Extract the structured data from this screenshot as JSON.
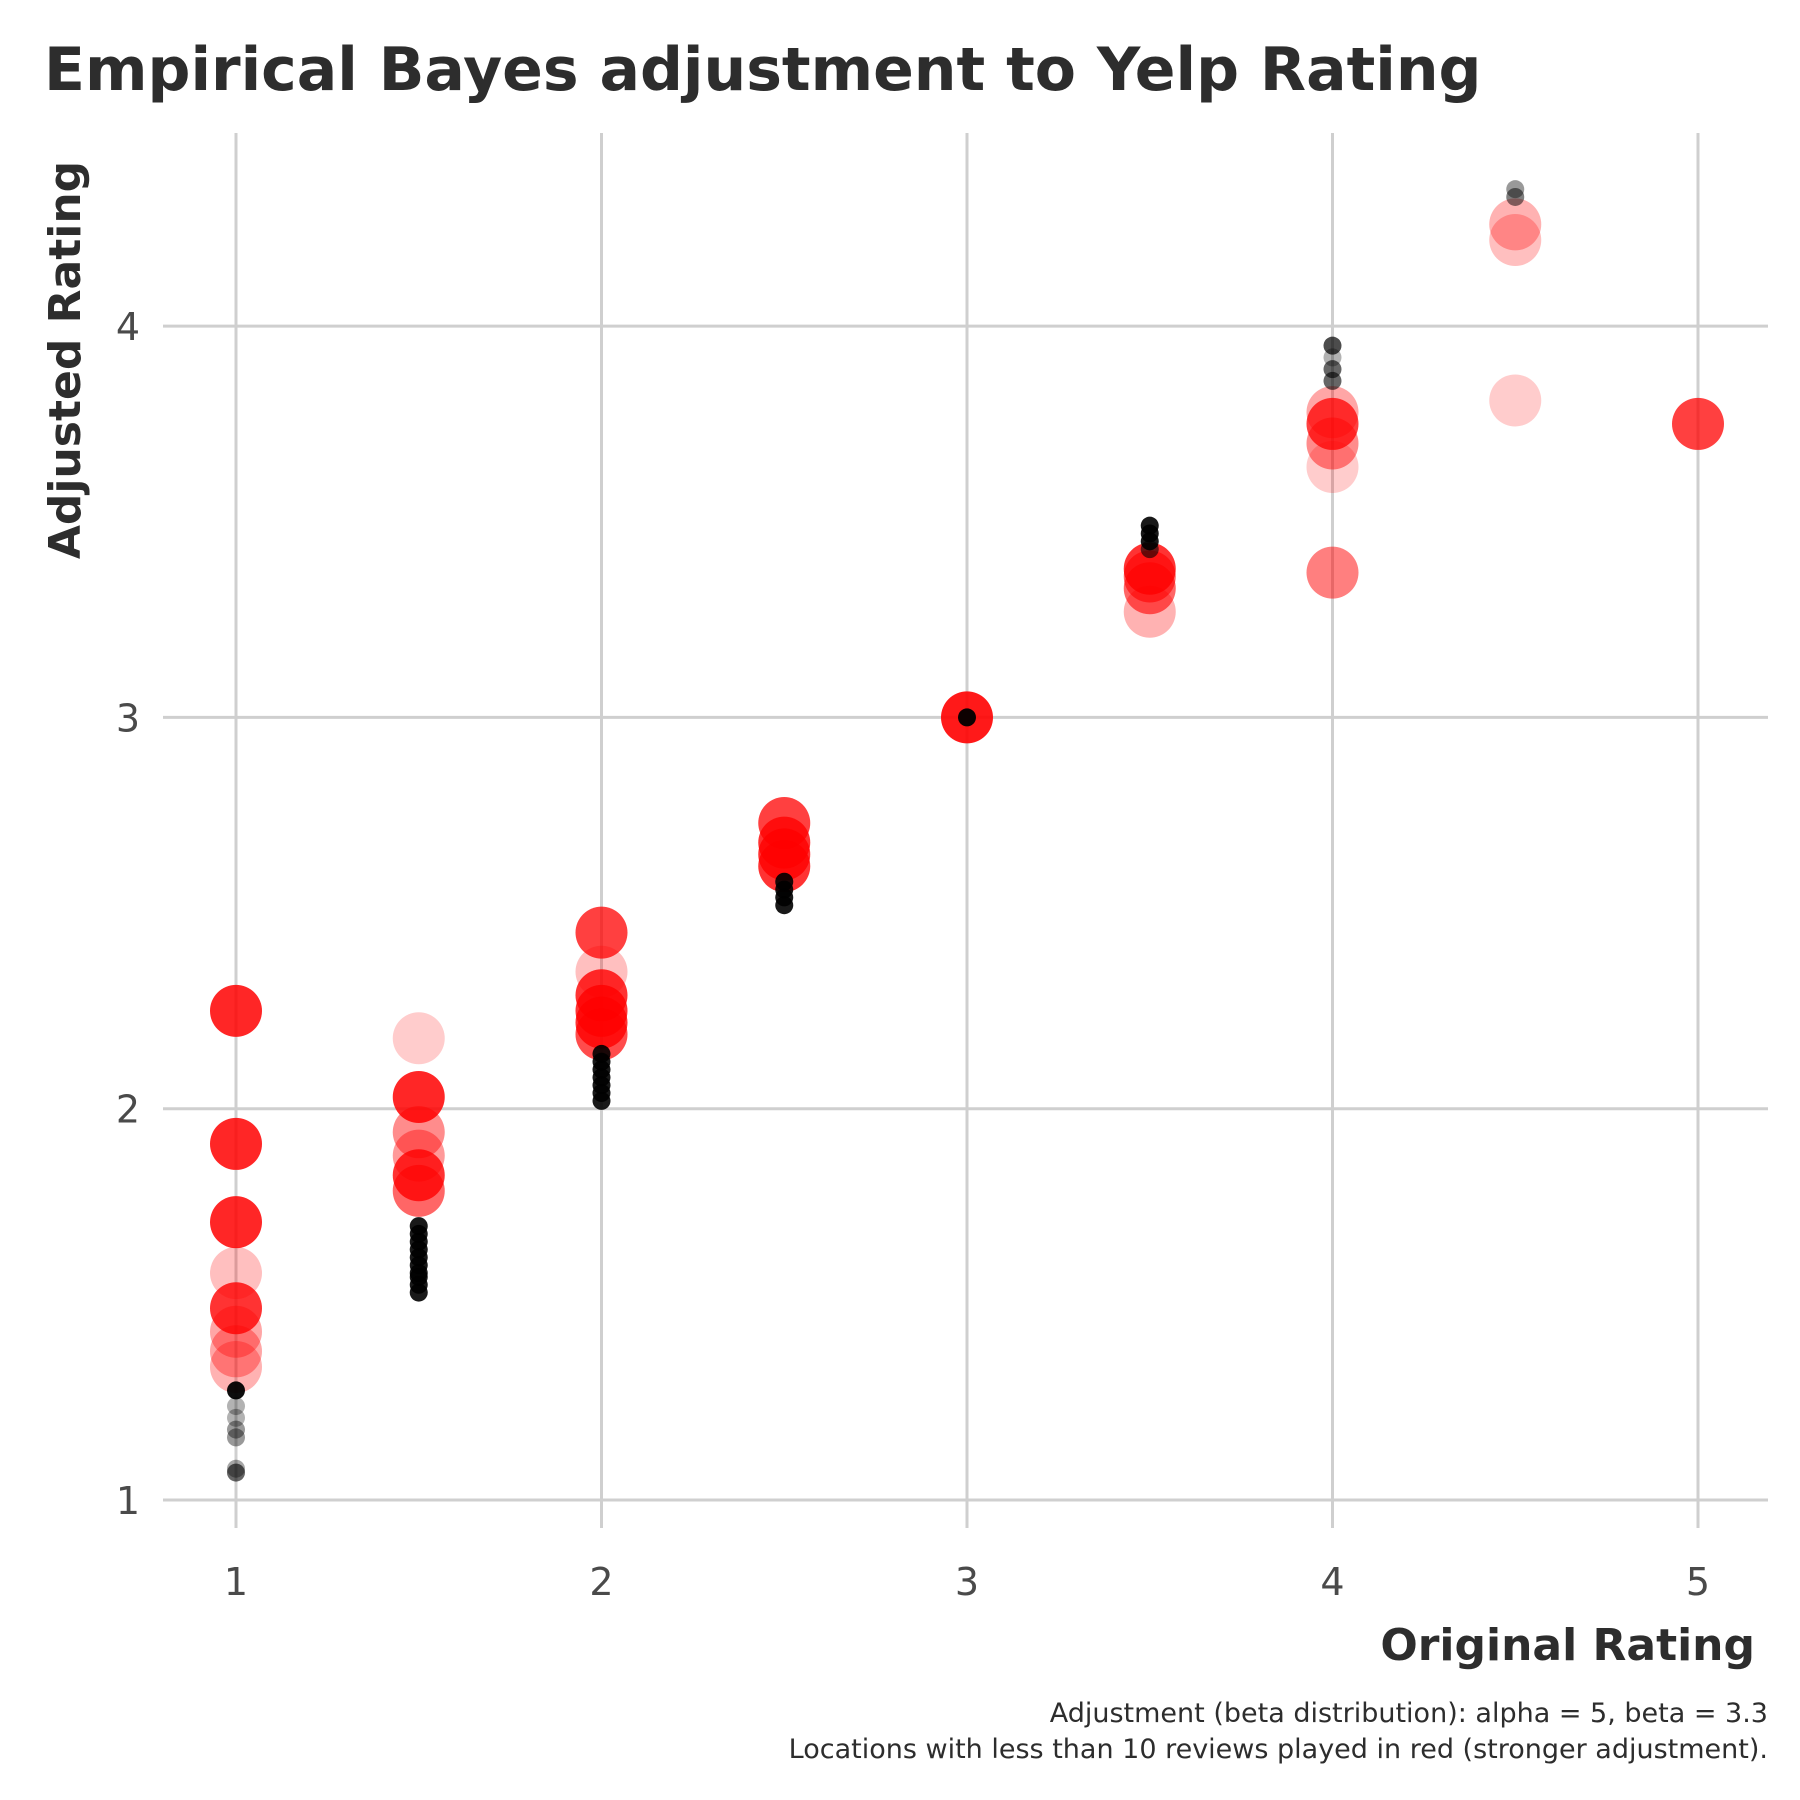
{
  "chart_data": {
    "type": "scatter",
    "title": "Empirical Bayes adjustment to Yelp Rating",
    "xlabel": "Original Rating",
    "ylabel": "Adjusted Rating",
    "caption_line1": "Adjustment (beta distribution): alpha = 5, beta = 3.3",
    "caption_line2": "Locations with less than 10 reviews played in red (stronger adjustment).",
    "xlim": [
      0.8,
      5.2
    ],
    "ylim": [
      0.87,
      4.5
    ],
    "x_ticks": [
      "1",
      "2",
      "3",
      "4",
      "5"
    ],
    "y_ticks": [
      "1",
      "2",
      "3",
      "4"
    ],
    "grid": true,
    "legend": "none",
    "colors": {
      "few_reviews": "#ff0000",
      "many_reviews": "#000000"
    },
    "series": [
      {
        "color": "#ff0000",
        "points": [
          {
            "x": 1,
            "y": 2.25,
            "a": 0.85
          },
          {
            "x": 1,
            "y": 1.91,
            "a": 0.85
          },
          {
            "x": 1,
            "y": 1.71,
            "a": 0.85
          },
          {
            "x": 1,
            "y": 1.58,
            "a": 0.25
          },
          {
            "x": 1,
            "y": 1.49,
            "a": 0.8
          },
          {
            "x": 1,
            "y": 1.43,
            "a": 0.35
          },
          {
            "x": 1,
            "y": 1.38,
            "a": 0.35
          },
          {
            "x": 1,
            "y": 1.34,
            "a": 0.3
          },
          {
            "x": 1.5,
            "y": 2.18,
            "a": 0.2
          },
          {
            "x": 1.5,
            "y": 2.03,
            "a": 0.85
          },
          {
            "x": 1.5,
            "y": 1.94,
            "a": 0.45
          },
          {
            "x": 1.5,
            "y": 1.88,
            "a": 0.4
          },
          {
            "x": 1.5,
            "y": 1.83,
            "a": 0.8
          },
          {
            "x": 1.5,
            "y": 1.79,
            "a": 0.6
          },
          {
            "x": 2,
            "y": 2.45,
            "a": 0.75
          },
          {
            "x": 2,
            "y": 2.35,
            "a": 0.25
          },
          {
            "x": 2,
            "y": 2.29,
            "a": 0.8
          },
          {
            "x": 2,
            "y": 2.25,
            "a": 0.8
          },
          {
            "x": 2,
            "y": 2.22,
            "a": 0.8
          },
          {
            "x": 2,
            "y": 2.19,
            "a": 0.7
          },
          {
            "x": 2.5,
            "y": 2.73,
            "a": 0.75
          },
          {
            "x": 2.5,
            "y": 2.68,
            "a": 0.8
          },
          {
            "x": 2.5,
            "y": 2.65,
            "a": 0.8
          },
          {
            "x": 2.5,
            "y": 2.62,
            "a": 0.8
          },
          {
            "x": 3,
            "y": 3.0,
            "a": 0.9
          },
          {
            "x": 3.5,
            "y": 3.38,
            "a": 0.8
          },
          {
            "x": 3.5,
            "y": 3.36,
            "a": 0.6
          },
          {
            "x": 3.5,
            "y": 3.33,
            "a": 0.6
          },
          {
            "x": 3.5,
            "y": 3.27,
            "a": 0.3
          },
          {
            "x": 4,
            "y": 3.78,
            "a": 0.35
          },
          {
            "x": 4,
            "y": 3.75,
            "a": 0.75
          },
          {
            "x": 4,
            "y": 3.7,
            "a": 0.45
          },
          {
            "x": 4,
            "y": 3.64,
            "a": 0.2
          },
          {
            "x": 4,
            "y": 3.37,
            "a": 0.5
          },
          {
            "x": 4.5,
            "y": 4.26,
            "a": 0.3
          },
          {
            "x": 4.5,
            "y": 4.22,
            "a": 0.25
          },
          {
            "x": 4.5,
            "y": 3.81,
            "a": 0.2
          },
          {
            "x": 5,
            "y": 3.75,
            "a": 0.75
          }
        ]
      },
      {
        "color": "#000000",
        "points": [
          {
            "x": 1,
            "y": 1.28,
            "a": 0.95
          },
          {
            "x": 1,
            "y": 1.24,
            "a": 0.3
          },
          {
            "x": 1,
            "y": 1.21,
            "a": 0.3
          },
          {
            "x": 1,
            "y": 1.18,
            "a": 0.4
          },
          {
            "x": 1,
            "y": 1.16,
            "a": 0.4
          },
          {
            "x": 1,
            "y": 1.08,
            "a": 0.35
          },
          {
            "x": 1,
            "y": 1.07,
            "a": 0.6
          },
          {
            "x": 1.5,
            "y": 1.7,
            "a": 0.9
          },
          {
            "x": 1.5,
            "y": 1.68,
            "a": 0.9
          },
          {
            "x": 1.5,
            "y": 1.66,
            "a": 0.9
          },
          {
            "x": 1.5,
            "y": 1.64,
            "a": 0.9
          },
          {
            "x": 1.5,
            "y": 1.62,
            "a": 0.9
          },
          {
            "x": 1.5,
            "y": 1.6,
            "a": 0.9
          },
          {
            "x": 1.5,
            "y": 1.58,
            "a": 0.9
          },
          {
            "x": 1.5,
            "y": 1.57,
            "a": 0.9
          },
          {
            "x": 1.5,
            "y": 1.55,
            "a": 0.9
          },
          {
            "x": 1.5,
            "y": 1.53,
            "a": 0.9
          },
          {
            "x": 2,
            "y": 2.14,
            "a": 0.9
          },
          {
            "x": 2,
            "y": 2.12,
            "a": 0.9
          },
          {
            "x": 2,
            "y": 2.1,
            "a": 0.9
          },
          {
            "x": 2,
            "y": 2.08,
            "a": 0.9
          },
          {
            "x": 2,
            "y": 2.06,
            "a": 0.9
          },
          {
            "x": 2,
            "y": 2.04,
            "a": 0.9
          },
          {
            "x": 2,
            "y": 2.02,
            "a": 0.9
          },
          {
            "x": 2.5,
            "y": 2.58,
            "a": 0.9
          },
          {
            "x": 2.5,
            "y": 2.56,
            "a": 0.9
          },
          {
            "x": 2.5,
            "y": 2.54,
            "a": 0.9
          },
          {
            "x": 2.5,
            "y": 2.52,
            "a": 0.9
          },
          {
            "x": 3,
            "y": 3.0,
            "a": 0.95
          },
          {
            "x": 3.5,
            "y": 3.49,
            "a": 0.9
          },
          {
            "x": 3.5,
            "y": 3.47,
            "a": 0.9
          },
          {
            "x": 3.5,
            "y": 3.45,
            "a": 0.9
          },
          {
            "x": 3.5,
            "y": 3.43,
            "a": 0.6
          },
          {
            "x": 4,
            "y": 3.95,
            "a": 0.7
          },
          {
            "x": 4,
            "y": 3.92,
            "a": 0.3
          },
          {
            "x": 4,
            "y": 3.89,
            "a": 0.6
          },
          {
            "x": 4,
            "y": 3.86,
            "a": 0.6
          },
          {
            "x": 4.5,
            "y": 4.35,
            "a": 0.4
          },
          {
            "x": 4.5,
            "y": 4.33,
            "a": 0.5
          }
        ]
      }
    ]
  }
}
